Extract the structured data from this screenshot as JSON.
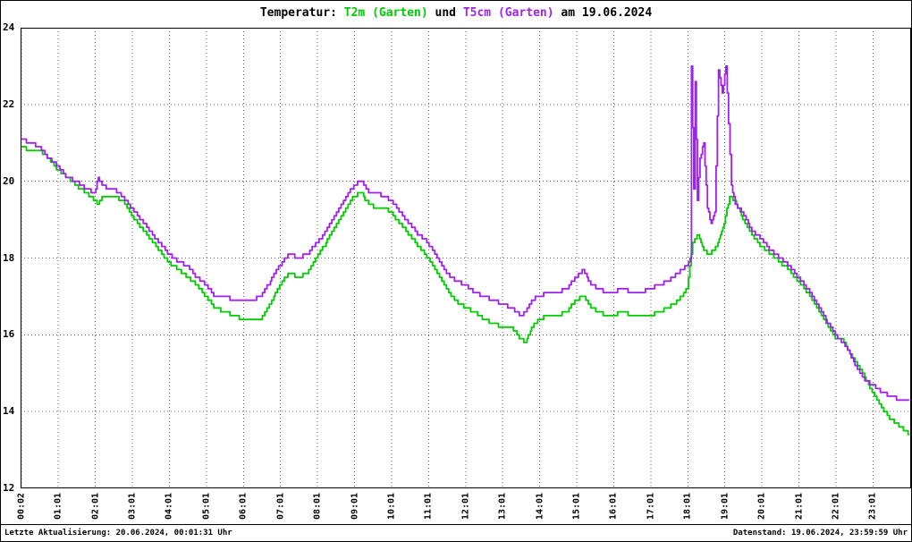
{
  "title": {
    "prefix": "Temperatur:",
    "series1": "T2m (Garten)",
    "conjunction": "und",
    "series2": "T5cm (Garten)",
    "suffix": "am 19.06.2024"
  },
  "footer": {
    "left": "Letzte Aktualisierung: 20.06.2024, 00:01:31 Uhr",
    "right": "Datenstand: 19.06.2024, 23:59:59 Uhr"
  },
  "chart_data": {
    "type": "line",
    "title": "Temperatur: T2m (Garten) und T5cm (Garten) am 19.06.2024",
    "date": "19.06.2024",
    "xlabel": "",
    "ylabel": "",
    "ylim": [
      12,
      24
    ],
    "xlim_hours": [
      0,
      24.05
    ],
    "grid": "dotted",
    "legend_position": "in-title",
    "y_ticks": [
      12,
      14,
      16,
      18,
      20,
      22,
      24
    ],
    "x_tick_labels": [
      "00:02",
      "01:01",
      "02:01",
      "03:01",
      "04:01",
      "05:01",
      "06:01",
      "07:01",
      "08:01",
      "09:01",
      "10:01",
      "11:01",
      "12:01",
      "13:01",
      "14:01",
      "15:01",
      "16:01",
      "17:01",
      "18:01",
      "19:01",
      "20:01",
      "21:01",
      "22:01",
      "23:01"
    ],
    "x_tick_hours": [
      0.03,
      1.02,
      2.02,
      3.02,
      4.02,
      5.02,
      6.02,
      7.02,
      8.02,
      9.02,
      10.02,
      11.02,
      12.02,
      13.02,
      14.02,
      15.02,
      16.02,
      17.02,
      18.02,
      19.02,
      20.02,
      21.02,
      22.02,
      23.02
    ],
    "colors": {
      "t2m": "#00cc00",
      "t5cm": "#a020f0",
      "grid": "#666666",
      "axis": "#000000",
      "background": "#ffffff"
    },
    "series": [
      {
        "id": "t2m-garten",
        "name": "T2m (Garten)",
        "unit": "degC",
        "color_key": "t2m",
        "x_hours": [
          0,
          0.25,
          0.5,
          0.75,
          1,
          1.25,
          1.5,
          1.75,
          2,
          2.1,
          2.2,
          2.35,
          2.5,
          2.75,
          3,
          3.25,
          3.5,
          3.75,
          4,
          4.25,
          4.5,
          4.75,
          5,
          5.25,
          5.5,
          5.75,
          6,
          6.25,
          6.5,
          6.75,
          7,
          7.25,
          7.5,
          7.75,
          8,
          8.25,
          8.5,
          8.75,
          9,
          9.2,
          9.4,
          9.6,
          9.8,
          10,
          10.25,
          10.5,
          10.75,
          11,
          11.25,
          11.5,
          11.75,
          12,
          12.25,
          12.5,
          12.75,
          13,
          13.25,
          13.5,
          13.65,
          13.8,
          14,
          14.25,
          14.5,
          14.75,
          15,
          15.2,
          15.4,
          15.6,
          15.8,
          16,
          16.25,
          16.5,
          16.75,
          17,
          17.25,
          17.5,
          17.75,
          18,
          18.15,
          18.3,
          18.45,
          18.6,
          18.8,
          19,
          19.15,
          19.3,
          19.5,
          19.75,
          20,
          20.25,
          20.5,
          20.75,
          21,
          21.25,
          21.5,
          21.75,
          22,
          22.2,
          22.4,
          22.6,
          22.8,
          23,
          23.25,
          23.5,
          23.75,
          24
        ],
        "values_c": [
          20.9,
          20.8,
          20.8,
          20.6,
          20.3,
          20.1,
          19.9,
          19.7,
          19.5,
          19.4,
          19.6,
          19.6,
          19.6,
          19.5,
          19.1,
          18.8,
          18.5,
          18.2,
          17.9,
          17.7,
          17.5,
          17.3,
          17,
          16.7,
          16.6,
          16.5,
          16.4,
          16.4,
          16.4,
          16.8,
          17.3,
          17.6,
          17.5,
          17.6,
          18,
          18.4,
          18.8,
          19.2,
          19.6,
          19.7,
          19.4,
          19.3,
          19.3,
          19.2,
          18.9,
          18.6,
          18.3,
          18,
          17.6,
          17.2,
          16.9,
          16.7,
          16.6,
          16.4,
          16.3,
          16.2,
          16.2,
          15.9,
          15.8,
          16.2,
          16.4,
          16.5,
          16.5,
          16.6,
          16.9,
          17,
          16.7,
          16.6,
          16.5,
          16.5,
          16.6,
          16.5,
          16.5,
          16.5,
          16.6,
          16.7,
          16.9,
          17.2,
          18.4,
          18.6,
          18.2,
          18.1,
          18.3,
          18.9,
          19.6,
          19.5,
          19,
          18.6,
          18.3,
          18.1,
          17.9,
          17.7,
          17.4,
          17.1,
          16.7,
          16.3,
          15.9,
          15.9,
          15.5,
          15.2,
          14.9,
          14.5,
          14.1,
          13.8,
          13.6,
          13.4
        ]
      },
      {
        "id": "t5cm-garten",
        "name": "T5cm (Garten)",
        "unit": "degC",
        "color_key": "t5cm",
        "x_hours": [
          0,
          0.25,
          0.5,
          0.75,
          1,
          1.25,
          1.5,
          1.75,
          2,
          2.1,
          2.2,
          2.35,
          2.5,
          2.75,
          3,
          3.25,
          3.5,
          3.75,
          4,
          4.25,
          4.5,
          4.75,
          5,
          5.25,
          5.5,
          5.75,
          6,
          6.25,
          6.5,
          6.75,
          7,
          7.25,
          7.5,
          7.75,
          8,
          8.25,
          8.5,
          8.75,
          9,
          9.2,
          9.4,
          9.6,
          9.8,
          10,
          10.25,
          10.5,
          10.75,
          11,
          11.25,
          11.5,
          11.75,
          12,
          12.25,
          12.5,
          12.75,
          13,
          13.25,
          13.5,
          13.65,
          13.8,
          14,
          14.25,
          14.5,
          14.75,
          15,
          15.2,
          15.4,
          15.6,
          15.8,
          16,
          16.25,
          16.5,
          16.75,
          17,
          17.25,
          17.5,
          17.75,
          18,
          18.08,
          18.12,
          18.18,
          18.22,
          18.28,
          18.35,
          18.45,
          18.55,
          18.65,
          18.75,
          18.85,
          18.95,
          19.05,
          19.12,
          19.2,
          19.3,
          19.5,
          19.75,
          20,
          20.25,
          20.5,
          20.75,
          21,
          21.25,
          21.5,
          21.75,
          22,
          22.2,
          22.4,
          22.6,
          22.8,
          23,
          23.25,
          23.5,
          23.75,
          24
        ],
        "values_c": [
          21.1,
          21,
          20.9,
          20.6,
          20.4,
          20.1,
          20,
          19.8,
          19.7,
          20.1,
          19.9,
          19.8,
          19.8,
          19.6,
          19.3,
          19,
          18.7,
          18.4,
          18.1,
          17.9,
          17.8,
          17.5,
          17.3,
          17,
          17,
          16.9,
          16.9,
          16.9,
          17,
          17.4,
          17.8,
          18.1,
          18,
          18.1,
          18.4,
          18.7,
          19.1,
          19.5,
          19.9,
          20,
          19.7,
          19.7,
          19.6,
          19.5,
          19.2,
          18.9,
          18.6,
          18.4,
          18,
          17.6,
          17.4,
          17.3,
          17.1,
          17,
          16.9,
          16.8,
          16.7,
          16.5,
          16.6,
          16.9,
          17,
          17.1,
          17.1,
          17.2,
          17.5,
          17.7,
          17.3,
          17.2,
          17.1,
          17.1,
          17.2,
          17.1,
          17.1,
          17.2,
          17.3,
          17.4,
          17.6,
          17.8,
          18,
          23,
          19.8,
          22.6,
          19.5,
          20.6,
          21,
          19.3,
          18.9,
          19.2,
          22.9,
          22.3,
          23,
          21.5,
          19.9,
          19.4,
          19.2,
          18.7,
          18.5,
          18.2,
          18,
          17.8,
          17.5,
          17.2,
          16.8,
          16.4,
          16,
          15.8,
          15.5,
          15.1,
          14.8,
          14.7,
          14.5,
          14.4,
          14.3,
          14.3
        ]
      }
    ]
  }
}
